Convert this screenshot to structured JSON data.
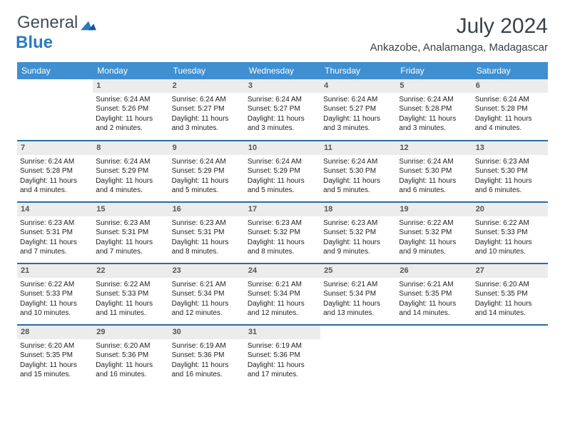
{
  "logo": {
    "part1": "General",
    "part2": "Blue"
  },
  "title": "July 2024",
  "location": "Ankazobe, Analamanga, Madagascar",
  "colors": {
    "header_bg": "#3f8fd1",
    "header_text": "#ffffff",
    "week_divider": "#2a6aa8",
    "daynum_bg": "#ececec",
    "title_text": "#3a4248",
    "logo_blue": "#2a7cc0",
    "logo_gray": "#3f4e56"
  },
  "weekdays": [
    "Sunday",
    "Monday",
    "Tuesday",
    "Wednesday",
    "Thursday",
    "Friday",
    "Saturday"
  ],
  "start_offset": 1,
  "days_in_month": 31,
  "days": {
    "1": {
      "sunrise": "6:24 AM",
      "sunset": "5:26 PM",
      "daylight": "11 hours and 2 minutes."
    },
    "2": {
      "sunrise": "6:24 AM",
      "sunset": "5:27 PM",
      "daylight": "11 hours and 3 minutes."
    },
    "3": {
      "sunrise": "6:24 AM",
      "sunset": "5:27 PM",
      "daylight": "11 hours and 3 minutes."
    },
    "4": {
      "sunrise": "6:24 AM",
      "sunset": "5:27 PM",
      "daylight": "11 hours and 3 minutes."
    },
    "5": {
      "sunrise": "6:24 AM",
      "sunset": "5:28 PM",
      "daylight": "11 hours and 3 minutes."
    },
    "6": {
      "sunrise": "6:24 AM",
      "sunset": "5:28 PM",
      "daylight": "11 hours and 4 minutes."
    },
    "7": {
      "sunrise": "6:24 AM",
      "sunset": "5:28 PM",
      "daylight": "11 hours and 4 minutes."
    },
    "8": {
      "sunrise": "6:24 AM",
      "sunset": "5:29 PM",
      "daylight": "11 hours and 4 minutes."
    },
    "9": {
      "sunrise": "6:24 AM",
      "sunset": "5:29 PM",
      "daylight": "11 hours and 5 minutes."
    },
    "10": {
      "sunrise": "6:24 AM",
      "sunset": "5:29 PM",
      "daylight": "11 hours and 5 minutes."
    },
    "11": {
      "sunrise": "6:24 AM",
      "sunset": "5:30 PM",
      "daylight": "11 hours and 5 minutes."
    },
    "12": {
      "sunrise": "6:24 AM",
      "sunset": "5:30 PM",
      "daylight": "11 hours and 6 minutes."
    },
    "13": {
      "sunrise": "6:23 AM",
      "sunset": "5:30 PM",
      "daylight": "11 hours and 6 minutes."
    },
    "14": {
      "sunrise": "6:23 AM",
      "sunset": "5:31 PM",
      "daylight": "11 hours and 7 minutes."
    },
    "15": {
      "sunrise": "6:23 AM",
      "sunset": "5:31 PM",
      "daylight": "11 hours and 7 minutes."
    },
    "16": {
      "sunrise": "6:23 AM",
      "sunset": "5:31 PM",
      "daylight": "11 hours and 8 minutes."
    },
    "17": {
      "sunrise": "6:23 AM",
      "sunset": "5:32 PM",
      "daylight": "11 hours and 8 minutes."
    },
    "18": {
      "sunrise": "6:23 AM",
      "sunset": "5:32 PM",
      "daylight": "11 hours and 9 minutes."
    },
    "19": {
      "sunrise": "6:22 AM",
      "sunset": "5:32 PM",
      "daylight": "11 hours and 9 minutes."
    },
    "20": {
      "sunrise": "6:22 AM",
      "sunset": "5:33 PM",
      "daylight": "11 hours and 10 minutes."
    },
    "21": {
      "sunrise": "6:22 AM",
      "sunset": "5:33 PM",
      "daylight": "11 hours and 10 minutes."
    },
    "22": {
      "sunrise": "6:22 AM",
      "sunset": "5:33 PM",
      "daylight": "11 hours and 11 minutes."
    },
    "23": {
      "sunrise": "6:21 AM",
      "sunset": "5:34 PM",
      "daylight": "11 hours and 12 minutes."
    },
    "24": {
      "sunrise": "6:21 AM",
      "sunset": "5:34 PM",
      "daylight": "11 hours and 12 minutes."
    },
    "25": {
      "sunrise": "6:21 AM",
      "sunset": "5:34 PM",
      "daylight": "11 hours and 13 minutes."
    },
    "26": {
      "sunrise": "6:21 AM",
      "sunset": "5:35 PM",
      "daylight": "11 hours and 14 minutes."
    },
    "27": {
      "sunrise": "6:20 AM",
      "sunset": "5:35 PM",
      "daylight": "11 hours and 14 minutes."
    },
    "28": {
      "sunrise": "6:20 AM",
      "sunset": "5:35 PM",
      "daylight": "11 hours and 15 minutes."
    },
    "29": {
      "sunrise": "6:20 AM",
      "sunset": "5:36 PM",
      "daylight": "11 hours and 16 minutes."
    },
    "30": {
      "sunrise": "6:19 AM",
      "sunset": "5:36 PM",
      "daylight": "11 hours and 16 minutes."
    },
    "31": {
      "sunrise": "6:19 AM",
      "sunset": "5:36 PM",
      "daylight": "11 hours and 17 minutes."
    }
  },
  "labels": {
    "sunrise": "Sunrise:",
    "sunset": "Sunset:",
    "daylight": "Daylight:"
  }
}
